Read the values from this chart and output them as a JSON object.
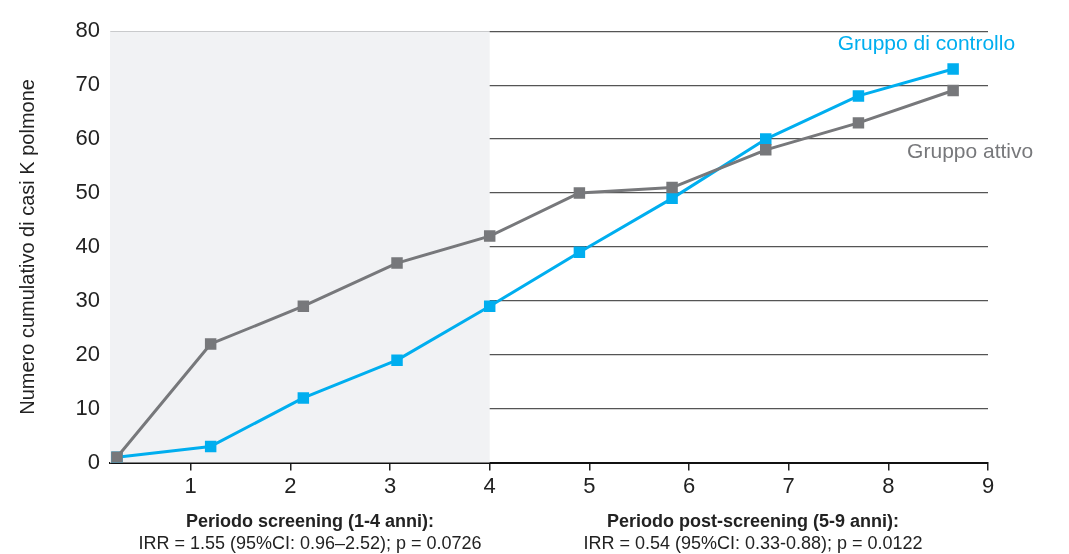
{
  "chart_data": {
    "type": "line",
    "ylabel": "Numero cumulativo di casi K polmone",
    "x": [
      0.26,
      1.2,
      2.13,
      3.07,
      4.0,
      4.9,
      5.83,
      6.77,
      7.7,
      8.65
    ],
    "series": [
      {
        "name": "Gruppo attivo",
        "color": "#77787b",
        "values": [
          1,
          22,
          29,
          37,
          42,
          50,
          51,
          58,
          63,
          69
        ]
      },
      {
        "name": "Gruppo di controllo",
        "color": "#00aeef",
        "values": [
          1,
          3,
          12,
          19,
          29,
          39,
          49,
          60,
          68,
          73
        ]
      }
    ],
    "xlim": [
      0.19,
      9
    ],
    "xticks": [
      1,
      2,
      3,
      4,
      5,
      6,
      7,
      8,
      9
    ],
    "ylim": [
      0,
      80
    ],
    "yticks": [
      0,
      10,
      20,
      30,
      40,
      50,
      60,
      70,
      80
    ],
    "bands": [
      {
        "axis": "x",
        "from": 0.19,
        "to": 4,
        "color": "#f1f2f4"
      }
    ],
    "grid": "y",
    "legend": false,
    "marker": "square",
    "line_style": "solid",
    "annotations": [
      "Periodo screening (1-4 anni):",
      "IRR = 1.55 (95%CI: 0.96–2.52); p = 0.0726",
      "Periodo post-screening (5-9 anni):",
      "IRR = 0.54 (95%CI: 0.33-0.88); p = 0.0122"
    ]
  }
}
